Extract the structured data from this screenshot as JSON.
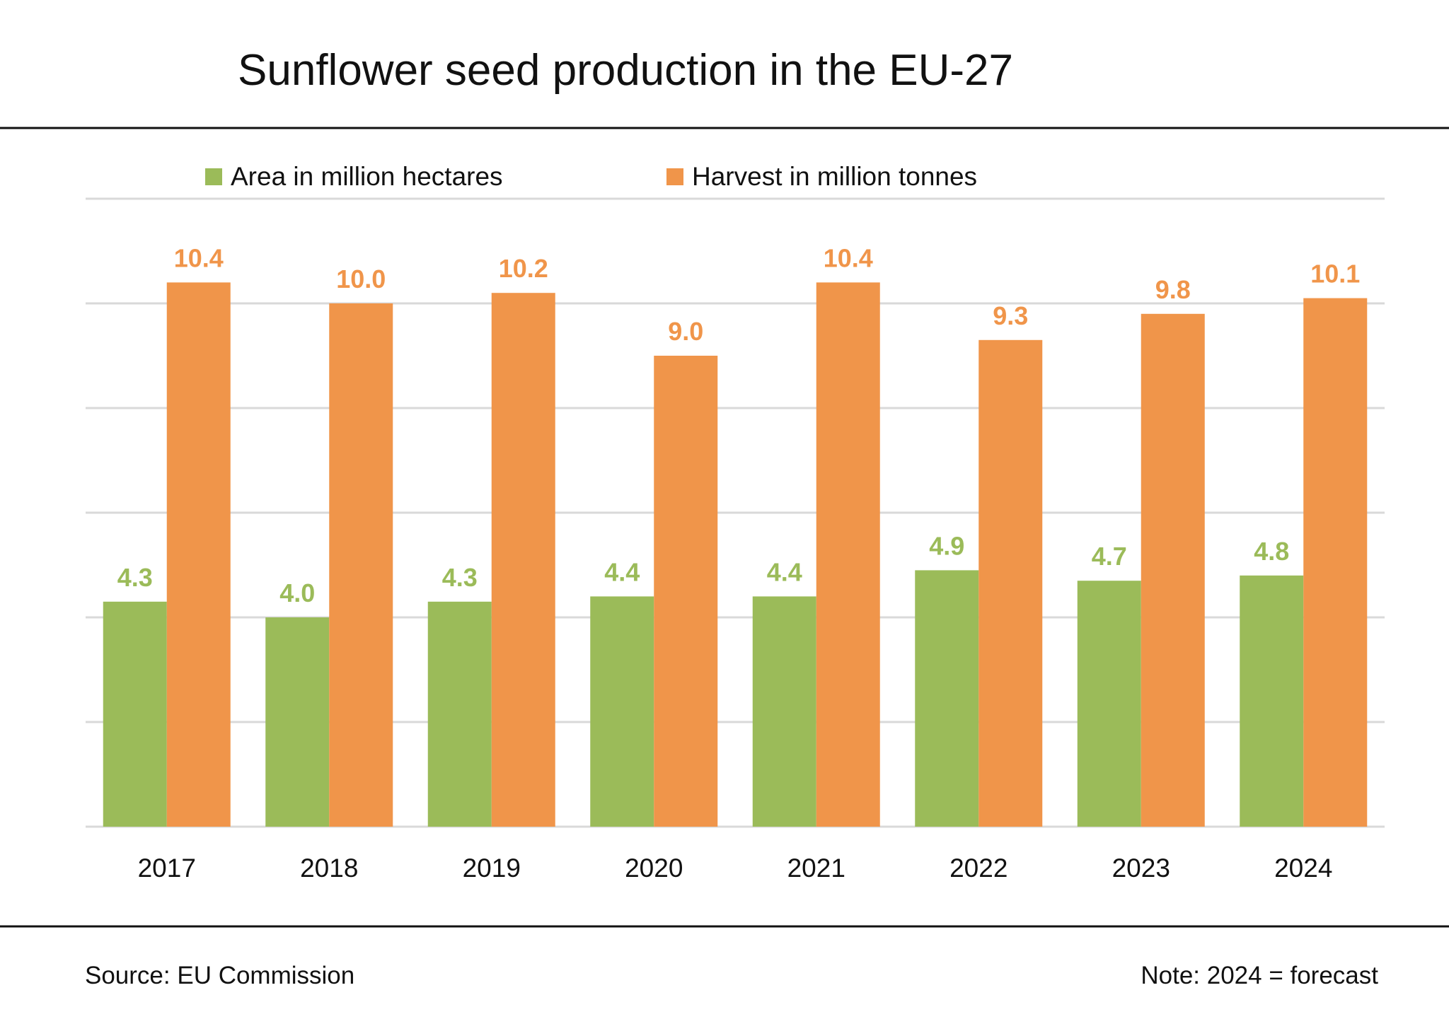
{
  "chart_data": {
    "type": "bar",
    "title": "Sunflower seed production in the EU-27",
    "categories": [
      "2017",
      "2018",
      "2019",
      "2020",
      "2021",
      "2022",
      "2023",
      "2024"
    ],
    "series": [
      {
        "name": "Area in million hectares",
        "color": "#9BBB59",
        "values": [
          4.3,
          4.0,
          4.3,
          4.4,
          4.4,
          4.9,
          4.7,
          4.8
        ]
      },
      {
        "name": "Harvest in million tonnes",
        "color": "#F0954A",
        "values": [
          10.4,
          10.0,
          10.2,
          9.0,
          10.4,
          9.3,
          9.8,
          10.1
        ]
      }
    ],
    "ylim": [
      0,
      12
    ],
    "ytick_step": 2,
    "grid": true,
    "legend_position": "top",
    "xlabel": "",
    "ylabel": ""
  },
  "footer": {
    "source": "Source:  EU Commission",
    "note": "Note: 2024 = forecast"
  }
}
